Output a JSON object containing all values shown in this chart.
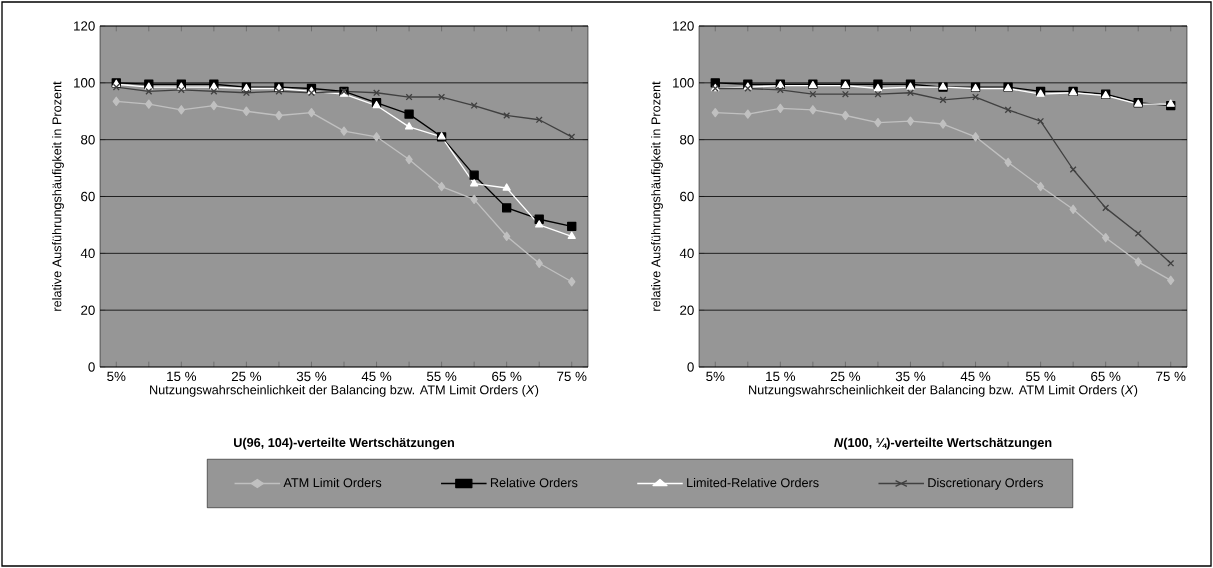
{
  "chart_data": [
    {
      "type": "line",
      "title": "U(96, 104)-verteilte Wertschätzungen",
      "xlabel": "Nutzungswahrscheinlichkeit der Balancing bzw. ATM Limit Orders (*X*)",
      "ylabel": "relative Ausführungshäufigkeit in Prozent",
      "categories": [
        "5%",
        null,
        "15 %",
        null,
        "25 %",
        null,
        "35 %",
        null,
        "45 %",
        null,
        "55 %",
        null,
        "65 %",
        null,
        "75 %"
      ],
      "ylim": [
        0,
        120
      ],
      "yticks": [
        0,
        20,
        40,
        60,
        80,
        100,
        120
      ],
      "grid": "y",
      "legend": "bottom",
      "series": [
        {
          "name": "ATM Limit Orders",
          "color": "#c0c0c0",
          "marker": "diamond",
          "values": [
            93.5,
            92.5,
            90.5,
            92,
            90,
            88.5,
            89.5,
            83,
            81,
            73,
            63.5,
            59,
            46,
            36.5,
            30
          ]
        },
        {
          "name": "Relative Orders",
          "color": "#000000",
          "marker": "square",
          "values": [
            100,
            99.5,
            99.5,
            99.5,
            98.5,
            98.5,
            98,
            97,
            93,
            89,
            81,
            67.5,
            56,
            52,
            49.5
          ]
        },
        {
          "name": "Limited-Relative Orders",
          "color": "#ffffff",
          "marker": "triangle",
          "values": [
            99.5,
            98.5,
            98.5,
            98.5,
            98,
            98,
            97,
            96,
            92,
            84.5,
            81,
            64.5,
            63,
            50,
            46
          ]
        },
        {
          "name": "Discretionary Orders",
          "color": "#404040",
          "marker": "cross",
          "values": [
            98.5,
            97,
            97.5,
            97,
            96.5,
            97,
            96.5,
            97,
            96.5,
            95,
            95,
            92,
            88.5,
            87,
            81
          ]
        }
      ]
    },
    {
      "type": "line",
      "title": "*N*(100, ¼)-verteilte Wertschätzungen",
      "xlabel": "Nutzungswahrscheinlichkeit der Balancing bzw. ATM Limit Orders (*X*)",
      "ylabel": "relative Ausführungshäufigkeit in Prozent",
      "categories": [
        "5%",
        null,
        "15 %",
        null,
        "25 %",
        null,
        "35 %",
        null,
        "45 %",
        null,
        "55 %",
        null,
        "65 %",
        null,
        "75 %"
      ],
      "ylim": [
        0,
        120
      ],
      "yticks": [
        0,
        20,
        40,
        60,
        80,
        100,
        120
      ],
      "grid": "y",
      "series": [
        {
          "color": "#c0c0c0",
          "marker": "diamond",
          "values": [
            89.5,
            89,
            91,
            90.5,
            88.5,
            86,
            86.5,
            85.5,
            81,
            72,
            63.5,
            55.5,
            45.5,
            37,
            30.5
          ]
        },
        {
          "color": "#000000",
          "marker": "square",
          "values": [
            100,
            99.5,
            99.5,
            99.5,
            99.5,
            99.5,
            99.5,
            98.5,
            98.5,
            98.5,
            97,
            97,
            96,
            93,
            92
          ]
        },
        {
          "color": "#ffffff",
          "marker": "triangle",
          "values": [
            98,
            98.5,
            99,
            99,
            99,
            98,
            98.5,
            98.5,
            98,
            98,
            96,
            96.5,
            95.5,
            92.5,
            92.5
          ]
        },
        {
          "color": "#404040",
          "marker": "cross",
          "values": [
            98,
            98,
            97.5,
            96,
            96,
            96,
            96.5,
            94,
            95,
            90.5,
            86.5,
            69.5,
            56,
            47,
            36.5
          ]
        }
      ]
    }
  ]
}
